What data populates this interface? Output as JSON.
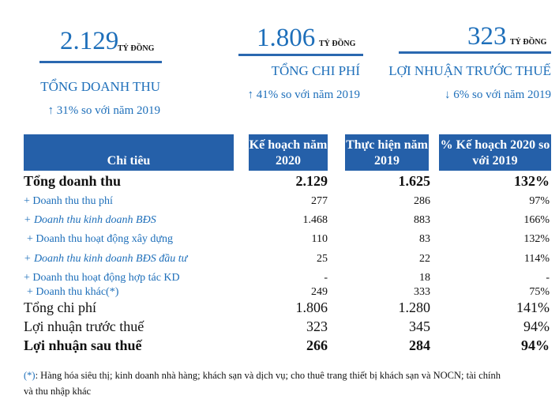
{
  "kpis": [
    {
      "value": "2.129",
      "unit": "TỶ ĐỒNG",
      "label": "TỔNG DOANH THU",
      "change_icon": "arrow-up-icon",
      "change": "↑ 31% so với năm 2019"
    },
    {
      "value": "1.806",
      "unit": "TỶ ĐỒNG",
      "label": "TỔNG CHI PHÍ",
      "change_icon": "arrow-up-icon",
      "change": "↑ 41% so với năm 2019"
    },
    {
      "value": "323",
      "unit": "TỶ ĐỒNG",
      "label": "LỢI NHUẬN TRƯỚC THUẾ",
      "change_icon": "arrow-down-icon",
      "change": "↓ 6% so với năm 2019"
    }
  ],
  "table": {
    "headers": [
      "Chỉ tiêu",
      "Kế hoạch năm 2020",
      "Thực hiện năm 2019",
      "% Kế hoạch 2020 so với 2019"
    ],
    "rows": [
      {
        "label": "Tổng doanh thu",
        "values": [
          "2.129",
          "1.625",
          "132%"
        ]
      },
      {
        "label": "+ Doanh thu thu phí",
        "values": [
          "277",
          "286",
          "97%"
        ]
      },
      {
        "label": "+ Doanh thu kinh doanh BĐS",
        "values": [
          "1.468",
          "883",
          "166%"
        ]
      },
      {
        "label": "+ Doanh thu hoạt động xây dựng",
        "values": [
          "110",
          "83",
          "132%"
        ]
      },
      {
        "label": "+ Doanh thu kinh doanh BĐS đầu tư",
        "values": [
          "25",
          "22",
          "114%"
        ]
      },
      {
        "label": "+ Doanh thu hoạt động hợp tác KD",
        "values": [
          "-",
          "18",
          "-"
        ]
      },
      {
        "label": "+ Doanh thu khác(*)",
        "values": [
          "249",
          "333",
          "75%"
        ]
      },
      {
        "label": "Tổng chi phí",
        "values": [
          "1.806",
          "1.280",
          "141%"
        ]
      },
      {
        "label": "Lợi nhuận trước thuế",
        "values": [
          "323",
          "345",
          "94%"
        ]
      },
      {
        "label": "Lợi nhuận sau thuế",
        "values": [
          "266",
          "284",
          "94%"
        ]
      }
    ]
  },
  "footnote": {
    "marker": "(*)",
    "text": ": Hàng hóa siêu thị; kinh doanh nhà hàng; khách sạn và dịch vụ; cho thuê trang thiết bị khách sạn và NOCN; tài chính",
    "text2": "và thu nhập khác"
  },
  "colors": {
    "accent": "#1e6fba",
    "header_bg": "#2560a9"
  }
}
